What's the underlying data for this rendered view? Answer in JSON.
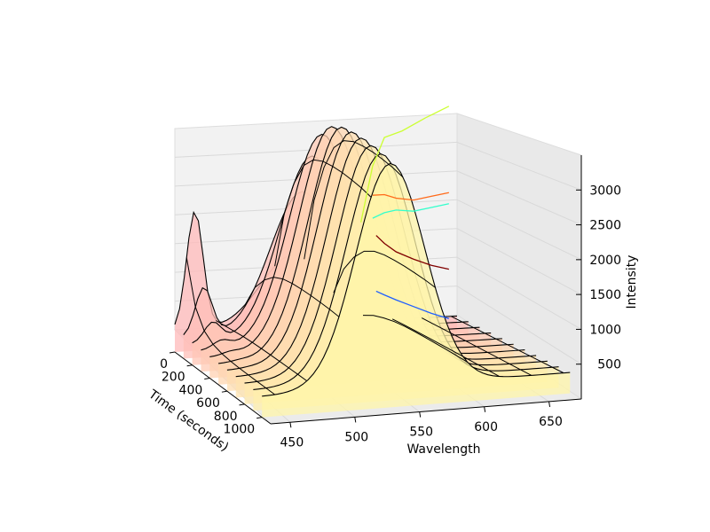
{
  "chart_data": {
    "type": "surface3d",
    "title": "",
    "xlabel": "Wavelength",
    "ylabel": "Time (seconds)",
    "zlabel": "Intensity",
    "xlim": [
      435,
      675
    ],
    "ylim": [
      0,
      1100
    ],
    "zlim": [
      0,
      3500
    ],
    "x_ticks": [
      450,
      500,
      550,
      600,
      650
    ],
    "y_ticks": [
      0,
      200,
      400,
      600,
      800,
      1000
    ],
    "z_ticks": [
      500,
      1000,
      1500,
      2000,
      2500,
      3000
    ],
    "grid": true,
    "colormap": "reds-to-yellow",
    "time_slices": [
      0,
      100,
      200,
      300,
      400,
      500,
      600,
      700,
      800,
      900,
      1000
    ],
    "peak_wavelength": 535,
    "peak_intensity_by_time": [
      1000,
      2000,
      2600,
      3000,
      3200,
      3280,
      3300,
      3300,
      3280,
      3250,
      3200
    ],
    "secondary_peak": {
      "wavelength": 452,
      "intensity_at_time_0": 1700
    },
    "baseline_intensity": 300,
    "projections_onto_back_wall": [
      {
        "name": "",
        "color": "#1f5fff",
        "wavelengths": [
          608,
          615,
          625,
          640,
          655,
          670
        ],
        "values": [
          700,
          640,
          560,
          450,
          340,
          250
        ]
      },
      {
        "name": "",
        "color": "#800000",
        "wavelengths": [
          608,
          615,
          625,
          640,
          655,
          670
        ],
        "values": [
          1500,
          1380,
          1250,
          1130,
          1030,
          960
        ]
      },
      {
        "name": "",
        "color": "#33ffcc",
        "wavelengths": [
          605,
          615,
          625,
          640,
          655,
          670
        ],
        "values": [
          1750,
          1820,
          1850,
          1820,
          1860,
          1900
        ]
      },
      {
        "name": "",
        "color": "#ff6a1a",
        "wavelengths": [
          605,
          615,
          625,
          640,
          655,
          670
        ],
        "values": [
          2080,
          2080,
          2020,
          1980,
          2020,
          2060
        ]
      },
      {
        "name": "",
        "color": "#ccff33",
        "wavelengths": [
          595,
          605,
          615,
          630,
          650,
          670
        ],
        "values": [
          1700,
          2500,
          2900,
          2980,
          3150,
          3300
        ]
      }
    ]
  }
}
